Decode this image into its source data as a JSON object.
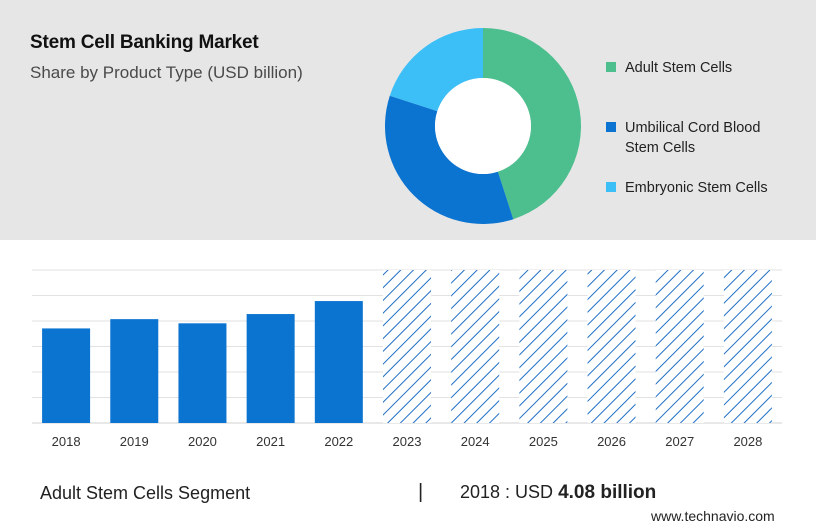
{
  "header": {
    "title": "Stem Cell Banking Market",
    "subtitle": "Share by Product Type (USD billion)"
  },
  "legend": {
    "items": [
      {
        "label": "Adult Stem Cells",
        "color": "#4dbf8f"
      },
      {
        "label": "Umbilical Cord Blood Stem Cells",
        "color": "#0b73d0"
      },
      {
        "label": "Embryonic Stem Cells",
        "color": "#3cbef7"
      }
    ]
  },
  "chart_data": [
    {
      "type": "pie",
      "style": "donut",
      "slices": [
        {
          "label": "Adult Stem Cells",
          "value": 45,
          "color": "#4dbf8f"
        },
        {
          "label": "Umbilical Cord Blood Stem Cells",
          "value": 35,
          "color": "#0b73d0"
        },
        {
          "label": "Embryonic Stem Cells",
          "value": 20,
          "color": "#3cbef7"
        }
      ]
    },
    {
      "type": "bar",
      "categories": [
        "2018",
        "2019",
        "2020",
        "2021",
        "2022",
        "2023",
        "2024",
        "2025",
        "2026",
        "2027",
        "2028"
      ],
      "values": [
        4.08,
        4.48,
        4.3,
        4.7,
        5.26,
        null,
        null,
        null,
        null,
        null,
        null
      ],
      "forecast": [
        false,
        false,
        false,
        false,
        false,
        true,
        true,
        true,
        true,
        true,
        true
      ],
      "ylim": [
        0,
        6.6
      ],
      "grid": true,
      "bar_color": "#0b73d0",
      "forecast_color": "#1f6fc6"
    }
  ],
  "footer": {
    "segment": "Adult Stem Cells Segment",
    "separator": "|",
    "value_prefix": "2018 : USD",
    "value_bold": "4.08 billion",
    "source": "www.technavio.com"
  }
}
